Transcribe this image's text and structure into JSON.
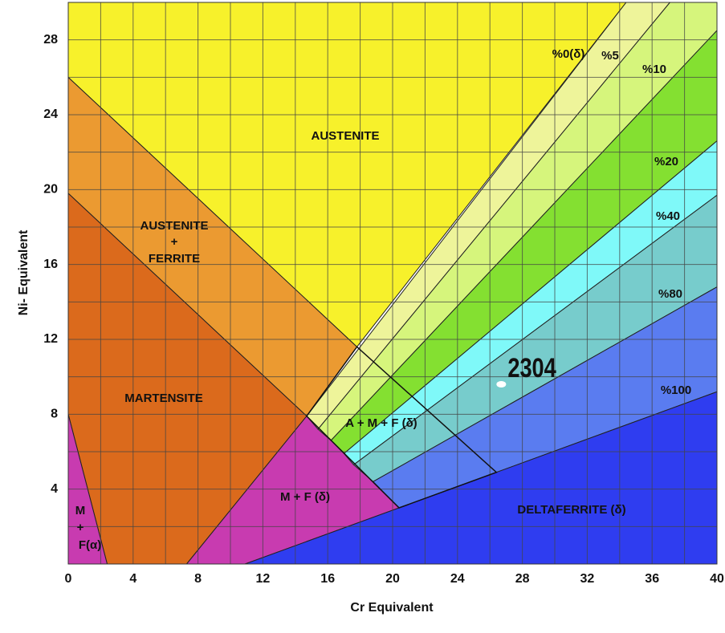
{
  "chart_data": {
    "type": "phase-diagram",
    "xlabel": "Cr Equivalent",
    "ylabel": "Ni- Equivalent",
    "xlim": [
      0,
      40
    ],
    "ylim": [
      0,
      30
    ],
    "xticks": [
      0,
      4,
      8,
      12,
      16,
      20,
      24,
      28,
      32,
      36,
      40
    ],
    "yticks": [
      4,
      8,
      12,
      16,
      20,
      24,
      28
    ],
    "xminor": [
      2,
      6,
      10,
      14,
      18,
      22,
      26,
      30,
      34,
      38
    ],
    "yminor": [
      2,
      6,
      10,
      14,
      18,
      22,
      26,
      30
    ],
    "grid": true,
    "regions": [
      {
        "color": "#f7f12b",
        "x": [
          0,
          34.4,
          17.8,
          0
        ],
        "y": [
          30,
          30,
          11.6,
          26
        ]
      },
      {
        "color": "#eb9a31",
        "x": [
          0,
          17.8,
          14.7,
          0
        ],
        "y": [
          26,
          11.6,
          7.9,
          19.8
        ]
      },
      {
        "color": "#db6a1c",
        "x": [
          0,
          14.7,
          7.3,
          2.4,
          0
        ],
        "y": [
          19.8,
          7.9,
          0,
          0,
          8
        ]
      },
      {
        "color": "#c83bb0",
        "x": [
          0,
          2.4,
          0
        ],
        "y": [
          8,
          0,
          0
        ]
      },
      {
        "color": "#c83bb0",
        "x": [
          7.3,
          14.7,
          20.4,
          10.9
        ],
        "y": [
          0,
          7.9,
          3.0,
          0
        ]
      },
      {
        "color": "#eef49a",
        "x": [
          14.7,
          34.4,
          37.1,
          15.4
        ],
        "y": [
          7.9,
          30,
          30,
          7.2
        ]
      },
      {
        "color": "#d6f57c",
        "x": [
          15.4,
          37.1,
          40,
          40,
          16.2
        ],
        "y": [
          7.2,
          30,
          30,
          28.5,
          6.6
        ]
      },
      {
        "color": "#84e031",
        "x": [
          16.2,
          40,
          40,
          17.0
        ],
        "y": [
          6.6,
          28.5,
          22.6,
          5.9
        ]
      },
      {
        "color": "#7ff9f9",
        "x": [
          17.0,
          40,
          40,
          17.6
        ],
        "y": [
          5.9,
          22.6,
          19.7,
          5.3
        ]
      },
      {
        "color": "#77cccc",
        "x": [
          17.6,
          40,
          40,
          18.8
        ],
        "y": [
          5.3,
          19.7,
          14.8,
          4.4
        ]
      },
      {
        "color": "#5a7cf0",
        "x": [
          18.8,
          40,
          40,
          20.4
        ],
        "y": [
          4.4,
          14.8,
          9.2,
          3.0
        ]
      },
      {
        "color": "#2f3df0",
        "x": [
          10.9,
          20.4,
          40,
          40
        ],
        "y": [
          0,
          3.0,
          9.2,
          0
        ]
      }
    ],
    "outline": {
      "x": [
        14.7,
        17.8,
        26.4,
        20.4
      ],
      "y": [
        7.9,
        11.6,
        4.9,
        3.0
      ]
    },
    "labels": [
      "AUSTENITE",
      "AUSTENITE",
      "+",
      "FERRITE",
      "MARTENSITE",
      "M",
      "+",
      "F(α)",
      "M + F  (δ)",
      "A + M + F (δ)",
      "DELTAFERRITE (δ)",
      "%0(δ)",
      "%5",
      "%10",
      "%20",
      "%40",
      "%80",
      "%100"
    ],
    "point": {
      "name": "2304",
      "x": 26.7,
      "y": 9.6
    }
  }
}
